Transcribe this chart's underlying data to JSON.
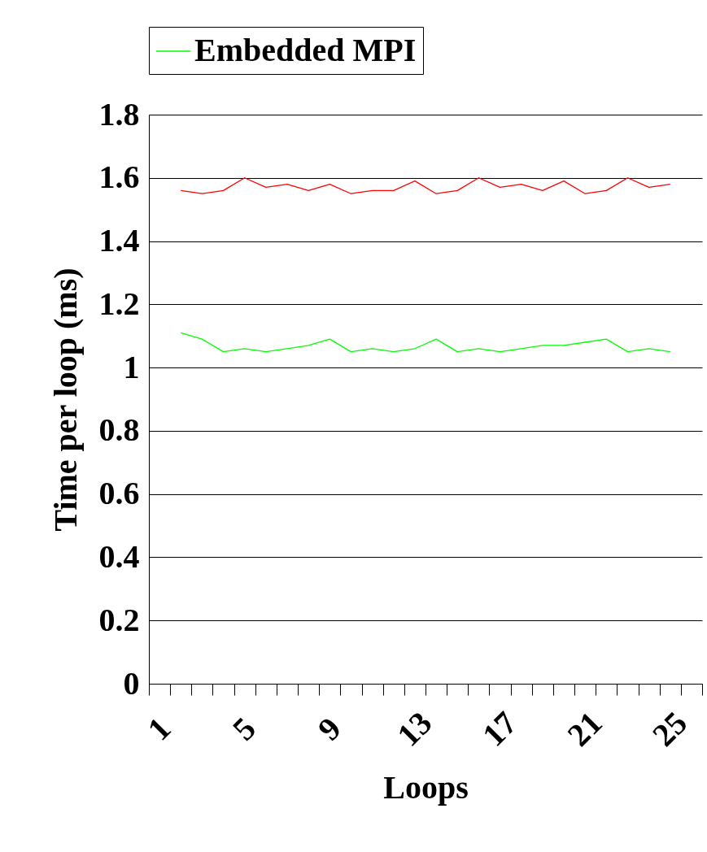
{
  "chart_data": {
    "type": "line",
    "xlabel": "Loops",
    "ylabel": "Time per loop (ms)",
    "categories": [
      "1",
      null,
      null,
      null,
      "5",
      null,
      null,
      null,
      "9",
      null,
      null,
      null,
      "13",
      null,
      null,
      null,
      "17",
      null,
      null,
      null,
      "21",
      null,
      null,
      null,
      "25",
      null
    ],
    "series": [
      {
        "color": "#ff0000",
        "values": [
          null,
          1.56,
          1.55,
          1.56,
          1.6,
          1.57,
          1.58,
          1.56,
          1.58,
          1.55,
          1.56,
          1.56,
          1.59,
          1.55,
          1.56,
          1.6,
          1.57,
          1.58,
          1.56,
          1.59,
          1.55,
          1.56,
          1.6,
          1.57,
          1.58,
          null
        ]
      },
      {
        "name": "Embedded MPI",
        "color": "#00ff00",
        "values": [
          null,
          1.11,
          1.09,
          1.05,
          1.06,
          1.05,
          1.06,
          1.07,
          1.09,
          1.05,
          1.06,
          1.05,
          1.06,
          1.09,
          1.05,
          1.06,
          1.05,
          1.06,
          1.07,
          1.07,
          1.08,
          1.09,
          1.05,
          1.06,
          1.05,
          null
        ]
      }
    ],
    "ylim": [
      0,
      1.8
    ],
    "yticks": [
      0,
      0.2,
      0.4,
      0.6,
      0.8,
      1,
      1.2,
      1.4,
      1.6,
      1.8
    ],
    "grid": "y",
    "legend": "top",
    "marker": "none",
    "line_style": "solid"
  }
}
